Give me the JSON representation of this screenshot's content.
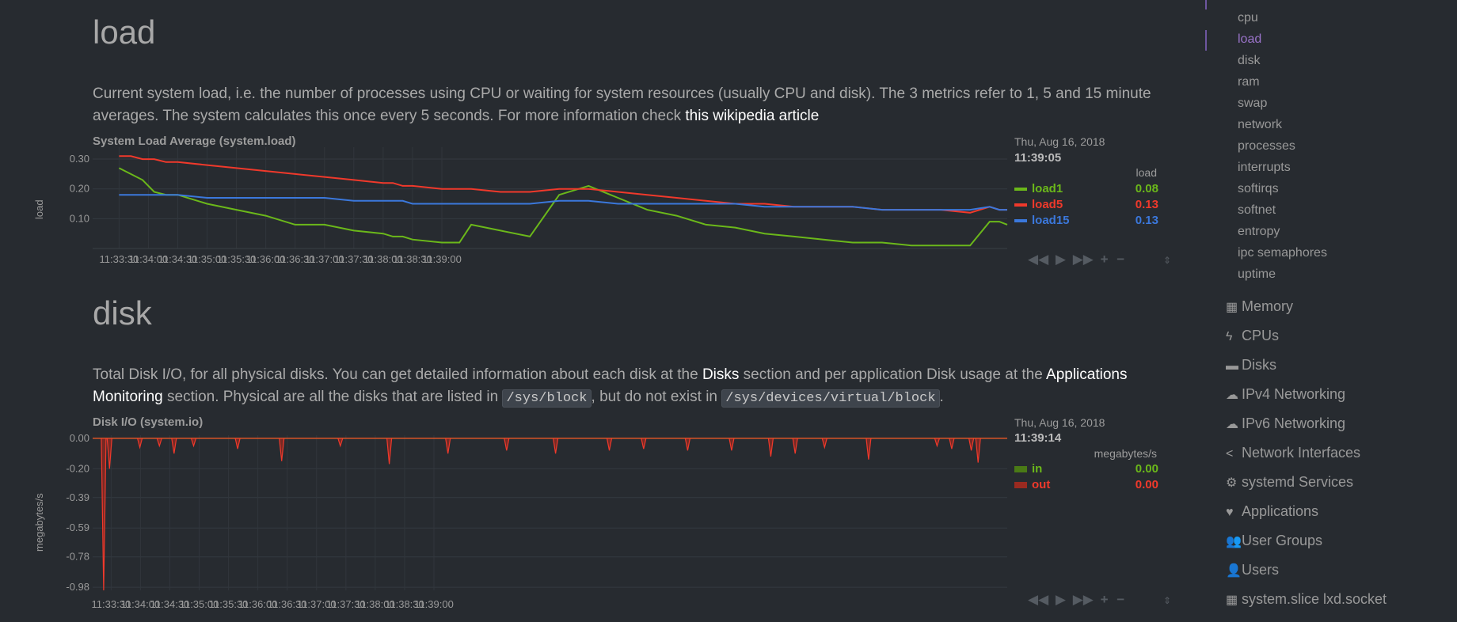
{
  "load": {
    "title": "load",
    "desc_text1": "Current system load, i.e. the number of processes using CPU or waiting for system resources (usually CPU and disk). The 3 metrics refer to 1, 5 and 15 minute averages. The system calculates this once every 5 seconds. For more information check ",
    "desc_link": "this wikipedia article",
    "chart_title": "System Load Average (system.load)",
    "ylabel": "load",
    "date": "Thu, Aug 16, 2018",
    "time": "11:39:05",
    "units": "load",
    "legend": [
      {
        "name": "load1",
        "value": "0.08",
        "color": "#6bb81a"
      },
      {
        "name": "load5",
        "value": "0.13",
        "color": "#f0392b"
      },
      {
        "name": "load15",
        "value": "0.13",
        "color": "#3b78dc"
      }
    ]
  },
  "disk": {
    "title": "disk",
    "desc_text1": "Total Disk I/O, for all physical disks. You can get detailed information about each disk at the ",
    "desc_link1": "Disks",
    "desc_text2": " section and per application Disk usage at the ",
    "desc_link2": "Applications Monitoring",
    "desc_text3": " section. Physical are all the disks that are listed in ",
    "desc_code1": "/sys/block",
    "desc_text4": ", but do not exist in ",
    "desc_code2": "/sys/devices/virtual/block",
    "desc_text5": ".",
    "chart_title": "Disk I/O (system.io)",
    "ylabel": "megabytes/s",
    "date": "Thu, Aug 16, 2018",
    "time": "11:39:14",
    "units": "megabytes/s",
    "legend": [
      {
        "name": "in",
        "value": "0.00",
        "color": "#6bb81a"
      },
      {
        "name": "out",
        "value": "0.00",
        "color": "#f0392b"
      }
    ]
  },
  "sidebar": {
    "sub_items": [
      "cpu",
      "load",
      "disk",
      "ram",
      "swap",
      "network",
      "processes",
      "interrupts",
      "softirqs",
      "softnet",
      "entropy",
      "ipc semaphores",
      "uptime"
    ],
    "active": "load",
    "main_items": [
      {
        "label": "Memory",
        "icon": "memory-icon",
        "glyph": "▦"
      },
      {
        "label": "CPUs",
        "icon": "bolt-icon",
        "glyph": "ϟ"
      },
      {
        "label": "Disks",
        "icon": "hdd-icon",
        "glyph": "▬"
      },
      {
        "label": "IPv4 Networking",
        "icon": "cloud-icon",
        "glyph": "☁"
      },
      {
        "label": "IPv6 Networking",
        "icon": "cloud-icon",
        "glyph": "☁"
      },
      {
        "label": "Network Interfaces",
        "icon": "share-icon",
        "glyph": "<"
      },
      {
        "label": "systemd Services",
        "icon": "cogs-icon",
        "glyph": "⚙"
      },
      {
        "label": "Applications",
        "icon": "heartbeat-icon",
        "glyph": "♥"
      },
      {
        "label": "User Groups",
        "icon": "users-icon",
        "glyph": "👥"
      },
      {
        "label": "Users",
        "icon": "user-icon",
        "glyph": "👤"
      },
      {
        "label": "system.slice lxd.socket",
        "icon": "grid-icon",
        "glyph": "▦"
      }
    ]
  },
  "chart_data": [
    {
      "type": "line",
      "title": "System Load Average (system.load)",
      "ylabel": "load",
      "xlabel": "",
      "x_ticks": [
        "11:33:30",
        "11:34:00",
        "11:34:30",
        "11:35:00",
        "11:35:30",
        "11:36:00",
        "11:36:30",
        "11:37:00",
        "11:37:30",
        "11:38:00",
        "11:38:30",
        "11:39:00"
      ],
      "y_ticks": [
        "0.30",
        "0.20",
        "0.10"
      ],
      "ylim": [
        0,
        0.34
      ],
      "x_seconds": [
        0,
        12,
        24,
        36,
        48,
        60,
        90,
        120,
        150,
        180,
        210,
        240,
        270,
        280,
        290,
        300,
        330,
        348,
        360,
        390,
        420,
        450,
        480,
        510,
        540,
        570,
        600,
        630,
        660,
        690,
        720,
        750,
        780,
        810,
        840,
        870,
        890,
        900,
        908
      ],
      "series": [
        {
          "name": "load1",
          "color": "#6bb81a",
          "values": [
            0.27,
            0.25,
            0.23,
            0.19,
            0.18,
            0.18,
            0.15,
            0.13,
            0.11,
            0.08,
            0.08,
            0.06,
            0.05,
            0.04,
            0.04,
            0.03,
            0.02,
            0.02,
            0.08,
            0.06,
            0.04,
            0.18,
            0.21,
            0.17,
            0.13,
            0.11,
            0.08,
            0.07,
            0.05,
            0.04,
            0.03,
            0.02,
            0.02,
            0.01,
            0.01,
            0.01,
            0.09,
            0.09,
            0.08
          ]
        },
        {
          "name": "load5",
          "color": "#f0392b",
          "values": [
            0.31,
            0.31,
            0.3,
            0.3,
            0.29,
            0.29,
            0.28,
            0.27,
            0.26,
            0.25,
            0.24,
            0.23,
            0.22,
            0.22,
            0.21,
            0.21,
            0.2,
            0.2,
            0.2,
            0.19,
            0.19,
            0.2,
            0.2,
            0.19,
            0.18,
            0.17,
            0.16,
            0.15,
            0.15,
            0.14,
            0.14,
            0.14,
            0.13,
            0.13,
            0.13,
            0.12,
            0.14,
            0.13,
            0.13
          ]
        },
        {
          "name": "load15",
          "color": "#3b78dc",
          "values": [
            0.18,
            0.18,
            0.18,
            0.18,
            0.18,
            0.18,
            0.17,
            0.17,
            0.17,
            0.17,
            0.17,
            0.16,
            0.16,
            0.16,
            0.16,
            0.15,
            0.15,
            0.15,
            0.15,
            0.15,
            0.15,
            0.16,
            0.16,
            0.15,
            0.15,
            0.15,
            0.15,
            0.15,
            0.14,
            0.14,
            0.14,
            0.14,
            0.13,
            0.13,
            0.13,
            0.13,
            0.14,
            0.13,
            0.13
          ]
        }
      ]
    },
    {
      "type": "area",
      "title": "Disk I/O (system.io)",
      "ylabel": "megabytes/s",
      "xlabel": "",
      "x_ticks": [
        "11:33:30",
        "11:34:00",
        "11:34:30",
        "11:35:00",
        "11:35:30",
        "11:36:00",
        "11:36:30",
        "11:37:00",
        "11:37:30",
        "11:38:00",
        "11:38:30",
        "11:39:00"
      ],
      "y_ticks": [
        "0.00",
        "-0.20",
        "-0.39",
        "-0.59",
        "-0.78",
        "-0.98"
      ],
      "ylim": [
        -1.0,
        0.02
      ],
      "series": [
        {
          "name": "in",
          "color": "#6bb81a",
          "values": [
            0,
            0,
            0,
            0,
            0,
            0,
            0,
            0,
            0,
            0
          ]
        },
        {
          "name": "out",
          "color": "#f0392b",
          "spikes_seconds": [
            8,
            14,
            45,
            65,
            80,
            100,
            145,
            190,
            250,
            300,
            360,
            420,
            470,
            525,
            560,
            605,
            650,
            690,
            715,
            745,
            790,
            860,
            875,
            895,
            902
          ],
          "spikes_values": [
            -1.0,
            -0.2,
            -0.06,
            -0.05,
            -0.1,
            -0.05,
            -0.07,
            -0.15,
            -0.05,
            -0.17,
            -0.1,
            -0.08,
            -0.1,
            -0.08,
            -0.07,
            -0.08,
            -0.08,
            -0.12,
            -0.1,
            -0.06,
            -0.14,
            -0.05,
            -0.07,
            -0.08,
            -0.16
          ]
        }
      ]
    }
  ]
}
